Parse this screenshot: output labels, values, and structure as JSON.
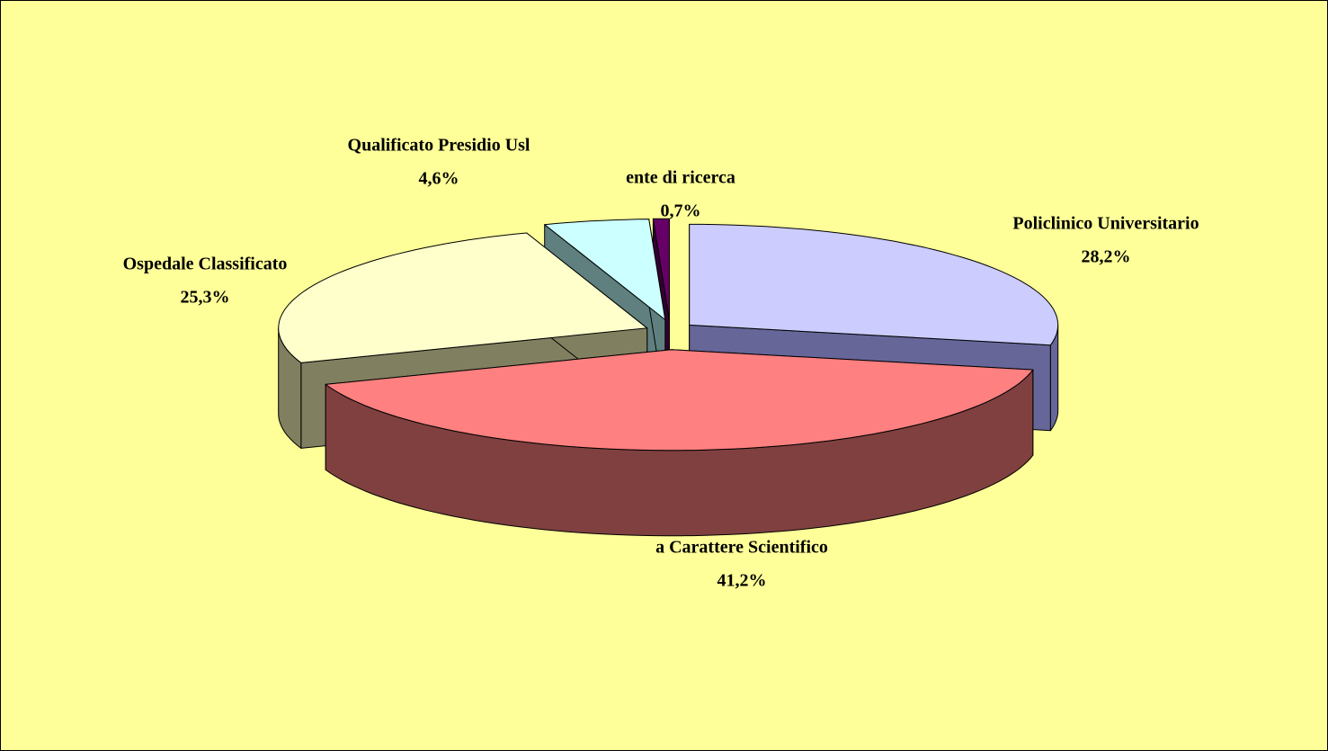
{
  "chart_data": {
    "type": "pie3d",
    "categories": [
      "Policlinico Universitario",
      "a Carattere Scientifico",
      "Ospedale Classificato",
      "Qualificato Presidio Usl",
      "ente di ricerca"
    ],
    "values": [
      28.2,
      41.2,
      25.3,
      4.6,
      0.7
    ],
    "value_labels": [
      "28,2%",
      "41,2%",
      "25,3%",
      "4,6%",
      "0,7%"
    ],
    "colors": [
      "#ccccff",
      "#ff8080",
      "#ffffcc",
      "#ccffff",
      "#660066"
    ],
    "side_colors": [
      "#666699",
      "#804040",
      "#808060",
      "#608080",
      "#330033"
    ]
  }
}
